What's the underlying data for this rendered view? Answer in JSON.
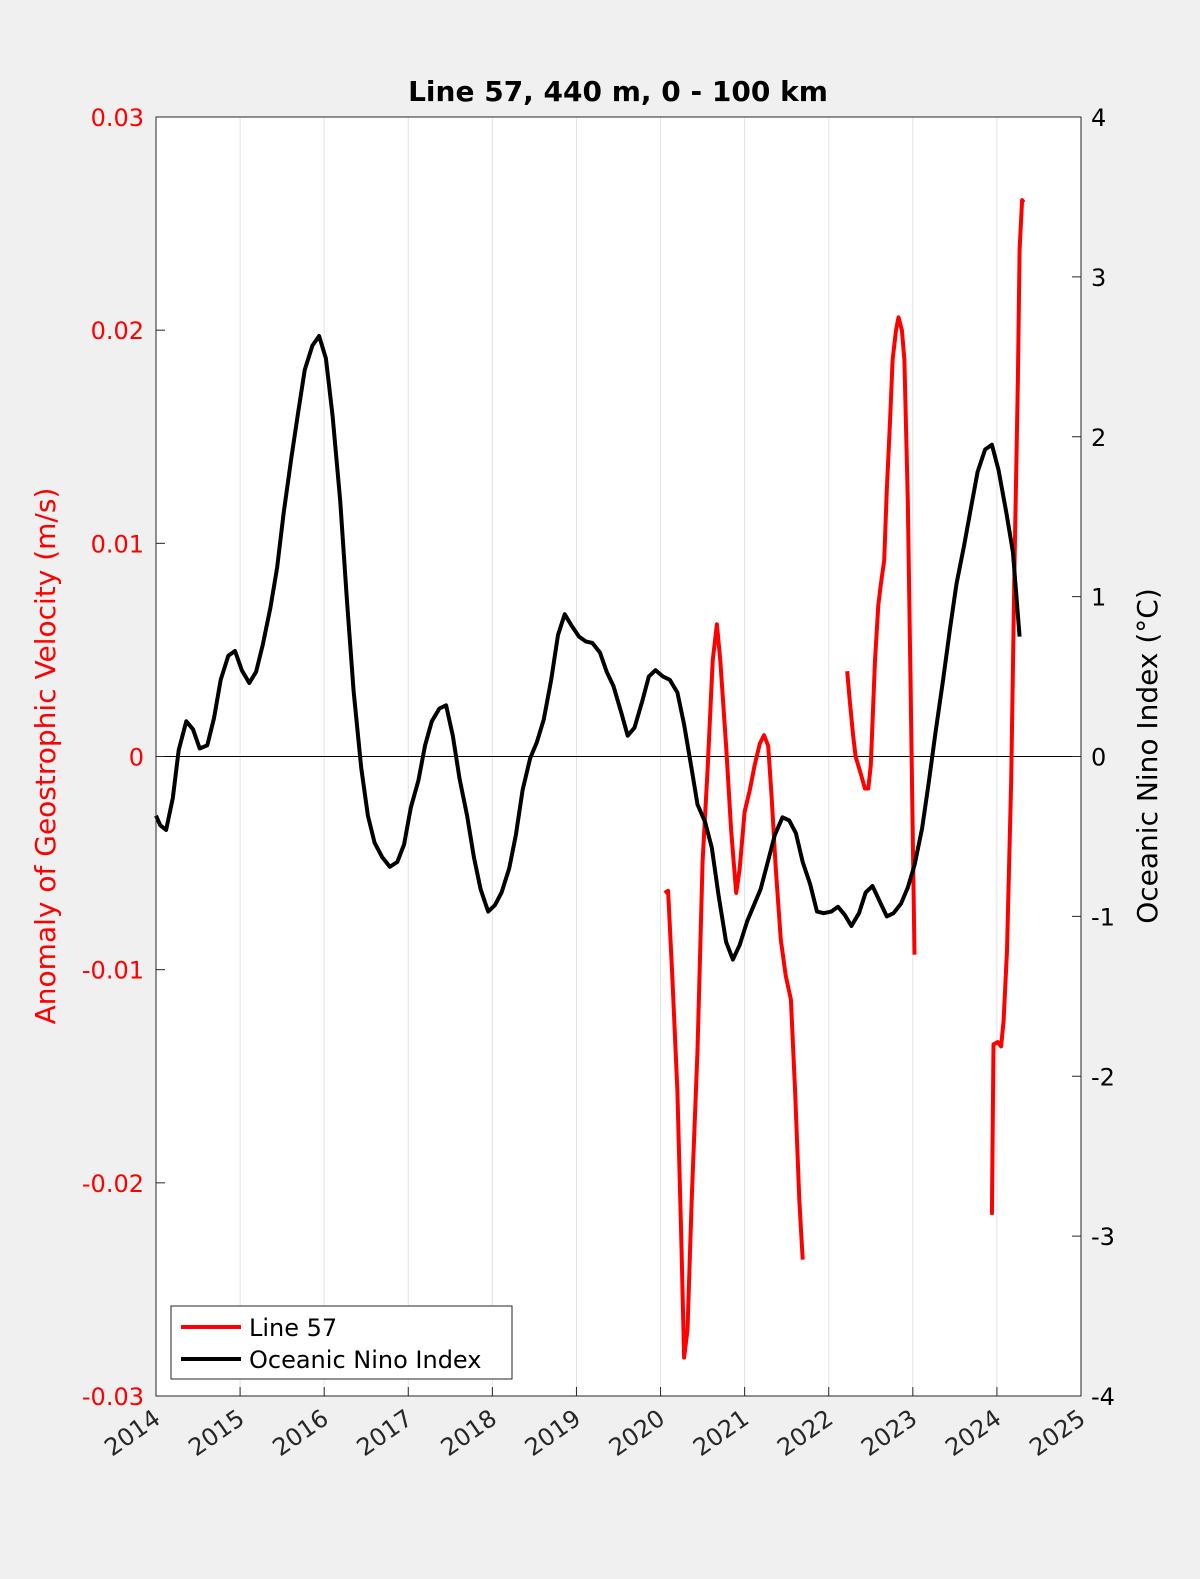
{
  "chart_data": {
    "type": "line",
    "title": "Line 57, 440 m, 0 - 100 km",
    "xlabel": "",
    "ylabel_left": "Anomaly of Geostrophic Velocity (m/s)",
    "ylabel_right": "Oceanic Nino Index (°C)",
    "xlim": [
      2014,
      2025
    ],
    "ylim_left": [
      -0.03,
      0.03
    ],
    "ylim_right": [
      -4,
      4
    ],
    "x_ticks": [
      "2014",
      "2015",
      "2016",
      "2017",
      "2018",
      "2019",
      "2020",
      "2021",
      "2022",
      "2023",
      "2024",
      "2025"
    ],
    "y_ticks_left": [
      "0.03",
      "0.02",
      "0.01",
      "0",
      "-0.01",
      "-0.02",
      "-0.03"
    ],
    "y_ticks_right": [
      "4",
      "3",
      "2",
      "1",
      "0",
      "-1",
      "-2",
      "-3",
      "-4"
    ],
    "grid": "vertical only",
    "zero_line": true,
    "legend_placement": "bottom-left",
    "colors": {
      "line57": "#ff0000",
      "oni": "#000000",
      "left_axis": "#ff0000",
      "right_axis": "#000000"
    },
    "series": [
      {
        "name": "Line 57",
        "axis": "left",
        "segments": [
          [
            [
              2020.05,
              -0.0064
            ],
            [
              2020.09,
              -0.0063
            ],
            [
              2020.14,
              -0.0103
            ],
            [
              2020.2,
              -0.0157
            ],
            [
              2020.25,
              -0.0232
            ],
            [
              2020.28,
              -0.0282
            ],
            [
              2020.32,
              -0.0269
            ],
            [
              2020.37,
              -0.0208
            ],
            [
              2020.44,
              -0.0138
            ],
            [
              2020.5,
              -0.0049
            ],
            [
              2020.56,
              -0.0006
            ],
            [
              2020.62,
              0.0045
            ],
            [
              2020.67,
              0.0062
            ],
            [
              2020.71,
              0.0045
            ],
            [
              2020.78,
              0.0005
            ],
            [
              2020.84,
              -0.0035
            ],
            [
              2020.9,
              -0.0064
            ],
            [
              2020.94,
              -0.0053
            ],
            [
              2021.0,
              -0.0026
            ],
            [
              2021.06,
              -0.0016
            ],
            [
              2021.12,
              -0.0004
            ],
            [
              2021.18,
              0.0006
            ],
            [
              2021.23,
              0.001
            ],
            [
              2021.28,
              0.0005
            ],
            [
              2021.32,
              -0.0018
            ],
            [
              2021.37,
              -0.0052
            ],
            [
              2021.43,
              -0.0086
            ],
            [
              2021.49,
              -0.0103
            ],
            [
              2021.55,
              -0.0114
            ],
            [
              2021.6,
              -0.0157
            ],
            [
              2021.65,
              -0.0208
            ],
            [
              2021.69,
              -0.0236
            ]
          ],
          [
            [
              2022.22,
              0.004
            ],
            [
              2022.25,
              0.0026
            ],
            [
              2022.29,
              0.001
            ],
            [
              2022.32,
              0.0
            ],
            [
              2022.38,
              -0.0008
            ],
            [
              2022.43,
              -0.0015
            ],
            [
              2022.47,
              -0.0015
            ],
            [
              2022.5,
              -0.0004
            ],
            [
              2022.55,
              0.0045
            ],
            [
              2022.59,
              0.0071
            ],
            [
              2022.62,
              0.0081
            ],
            [
              2022.66,
              0.0092
            ],
            [
              2022.69,
              0.0125
            ],
            [
              2022.73,
              0.0158
            ],
            [
              2022.76,
              0.0186
            ],
            [
              2022.8,
              0.02
            ],
            [
              2022.83,
              0.0206
            ],
            [
              2022.87,
              0.02
            ],
            [
              2022.9,
              0.0186
            ],
            [
              2022.94,
              0.012
            ],
            [
              2022.98,
              0.0017
            ],
            [
              2023.02,
              -0.0093
            ]
          ],
          [
            [
              2023.94,
              -0.0215
            ],
            [
              2023.96,
              -0.0135
            ],
            [
              2024.01,
              -0.0134
            ],
            [
              2024.05,
              -0.0136
            ],
            [
              2024.08,
              -0.0124
            ],
            [
              2024.12,
              -0.0091
            ],
            [
              2024.17,
              -0.0011
            ],
            [
              2024.21,
              0.0092
            ],
            [
              2024.25,
              0.0177
            ],
            [
              2024.27,
              0.0238
            ],
            [
              2024.3,
              0.0261
            ],
            [
              2024.32,
              0.026
            ]
          ]
        ]
      },
      {
        "name": "Oceanic Nino Index",
        "axis": "right",
        "segments": [
          [
            [
              2014.0,
              -0.37
            ],
            [
              2014.05,
              -0.43
            ],
            [
              2014.12,
              -0.46
            ],
            [
              2014.2,
              -0.26
            ],
            [
              2014.27,
              0.04
            ],
            [
              2014.36,
              0.22
            ],
            [
              2014.44,
              0.17
            ],
            [
              2014.52,
              0.05
            ],
            [
              2014.61,
              0.07
            ],
            [
              2014.69,
              0.24
            ],
            [
              2014.77,
              0.48
            ],
            [
              2014.86,
              0.63
            ],
            [
              2014.94,
              0.66
            ],
            [
              2015.02,
              0.54
            ],
            [
              2015.11,
              0.46
            ],
            [
              2015.19,
              0.53
            ],
            [
              2015.27,
              0.7
            ],
            [
              2015.36,
              0.93
            ],
            [
              2015.44,
              1.18
            ],
            [
              2015.52,
              1.53
            ],
            [
              2015.61,
              1.87
            ],
            [
              2015.69,
              2.15
            ],
            [
              2015.77,
              2.42
            ],
            [
              2015.86,
              2.57
            ],
            [
              2015.94,
              2.63
            ],
            [
              2016.02,
              2.49
            ],
            [
              2016.1,
              2.13
            ],
            [
              2016.19,
              1.6
            ],
            [
              2016.27,
              0.98
            ],
            [
              2016.35,
              0.41
            ],
            [
              2016.44,
              -0.07
            ],
            [
              2016.52,
              -0.37
            ],
            [
              2016.6,
              -0.54
            ],
            [
              2016.69,
              -0.63
            ],
            [
              2016.78,
              -0.69
            ],
            [
              2016.87,
              -0.66
            ],
            [
              2016.95,
              -0.55
            ],
            [
              2017.03,
              -0.32
            ],
            [
              2017.12,
              -0.15
            ],
            [
              2017.2,
              0.07
            ],
            [
              2017.28,
              0.22
            ],
            [
              2017.37,
              0.3
            ],
            [
              2017.45,
              0.32
            ],
            [
              2017.53,
              0.13
            ],
            [
              2017.61,
              -0.14
            ],
            [
              2017.7,
              -0.37
            ],
            [
              2017.78,
              -0.63
            ],
            [
              2017.86,
              -0.83
            ],
            [
              2017.95,
              -0.97
            ],
            [
              2018.03,
              -0.93
            ],
            [
              2018.11,
              -0.85
            ],
            [
              2018.2,
              -0.7
            ],
            [
              2018.28,
              -0.49
            ],
            [
              2018.36,
              -0.21
            ],
            [
              2018.45,
              -0.01
            ],
            [
              2018.53,
              0.09
            ],
            [
              2018.61,
              0.23
            ],
            [
              2018.7,
              0.48
            ],
            [
              2018.78,
              0.76
            ],
            [
              2018.86,
              0.89
            ],
            [
              2018.94,
              0.82
            ],
            [
              2019.03,
              0.75
            ],
            [
              2019.11,
              0.72
            ],
            [
              2019.19,
              0.71
            ],
            [
              2019.28,
              0.65
            ],
            [
              2019.36,
              0.53
            ],
            [
              2019.44,
              0.44
            ],
            [
              2019.53,
              0.28
            ],
            [
              2019.61,
              0.13
            ],
            [
              2019.69,
              0.18
            ],
            [
              2019.78,
              0.34
            ],
            [
              2019.86,
              0.5
            ],
            [
              2019.94,
              0.54
            ],
            [
              2020.03,
              0.5
            ],
            [
              2020.11,
              0.48
            ],
            [
              2020.2,
              0.4
            ],
            [
              2020.28,
              0.2
            ],
            [
              2020.37,
              -0.08
            ],
            [
              2020.44,
              -0.3
            ],
            [
              2020.53,
              -0.41
            ],
            [
              2020.61,
              -0.57
            ],
            [
              2020.69,
              -0.87
            ],
            [
              2020.78,
              -1.16
            ],
            [
              2020.86,
              -1.27
            ],
            [
              2020.94,
              -1.18
            ],
            [
              2021.03,
              -1.03
            ],
            [
              2021.11,
              -0.93
            ],
            [
              2021.19,
              -0.83
            ],
            [
              2021.28,
              -0.65
            ],
            [
              2021.36,
              -0.49
            ],
            [
              2021.45,
              -0.38
            ],
            [
              2021.53,
              -0.4
            ],
            [
              2021.61,
              -0.48
            ],
            [
              2021.69,
              -0.66
            ],
            [
              2021.78,
              -0.8
            ],
            [
              2021.86,
              -0.97
            ],
            [
              2021.94,
              -0.98
            ],
            [
              2022.03,
              -0.97
            ],
            [
              2022.11,
              -0.94
            ],
            [
              2022.19,
              -0.99
            ],
            [
              2022.27,
              -1.06
            ],
            [
              2022.36,
              -0.98
            ],
            [
              2022.44,
              -0.85
            ],
            [
              2022.52,
              -0.81
            ],
            [
              2022.61,
              -0.91
            ],
            [
              2022.69,
              -1.0
            ],
            [
              2022.77,
              -0.98
            ],
            [
              2022.86,
              -0.92
            ],
            [
              2022.94,
              -0.82
            ],
            [
              2023.02,
              -0.68
            ],
            [
              2023.11,
              -0.45
            ],
            [
              2023.19,
              -0.16
            ],
            [
              2023.27,
              0.15
            ],
            [
              2023.36,
              0.48
            ],
            [
              2023.44,
              0.79
            ],
            [
              2023.52,
              1.08
            ],
            [
              2023.61,
              1.32
            ],
            [
              2023.69,
              1.55
            ],
            [
              2023.77,
              1.78
            ],
            [
              2023.86,
              1.92
            ],
            [
              2023.94,
              1.95
            ],
            [
              2024.02,
              1.79
            ],
            [
              2024.11,
              1.53
            ],
            [
              2024.19,
              1.28
            ],
            [
              2024.27,
              0.75
            ]
          ]
        ]
      }
    ]
  }
}
